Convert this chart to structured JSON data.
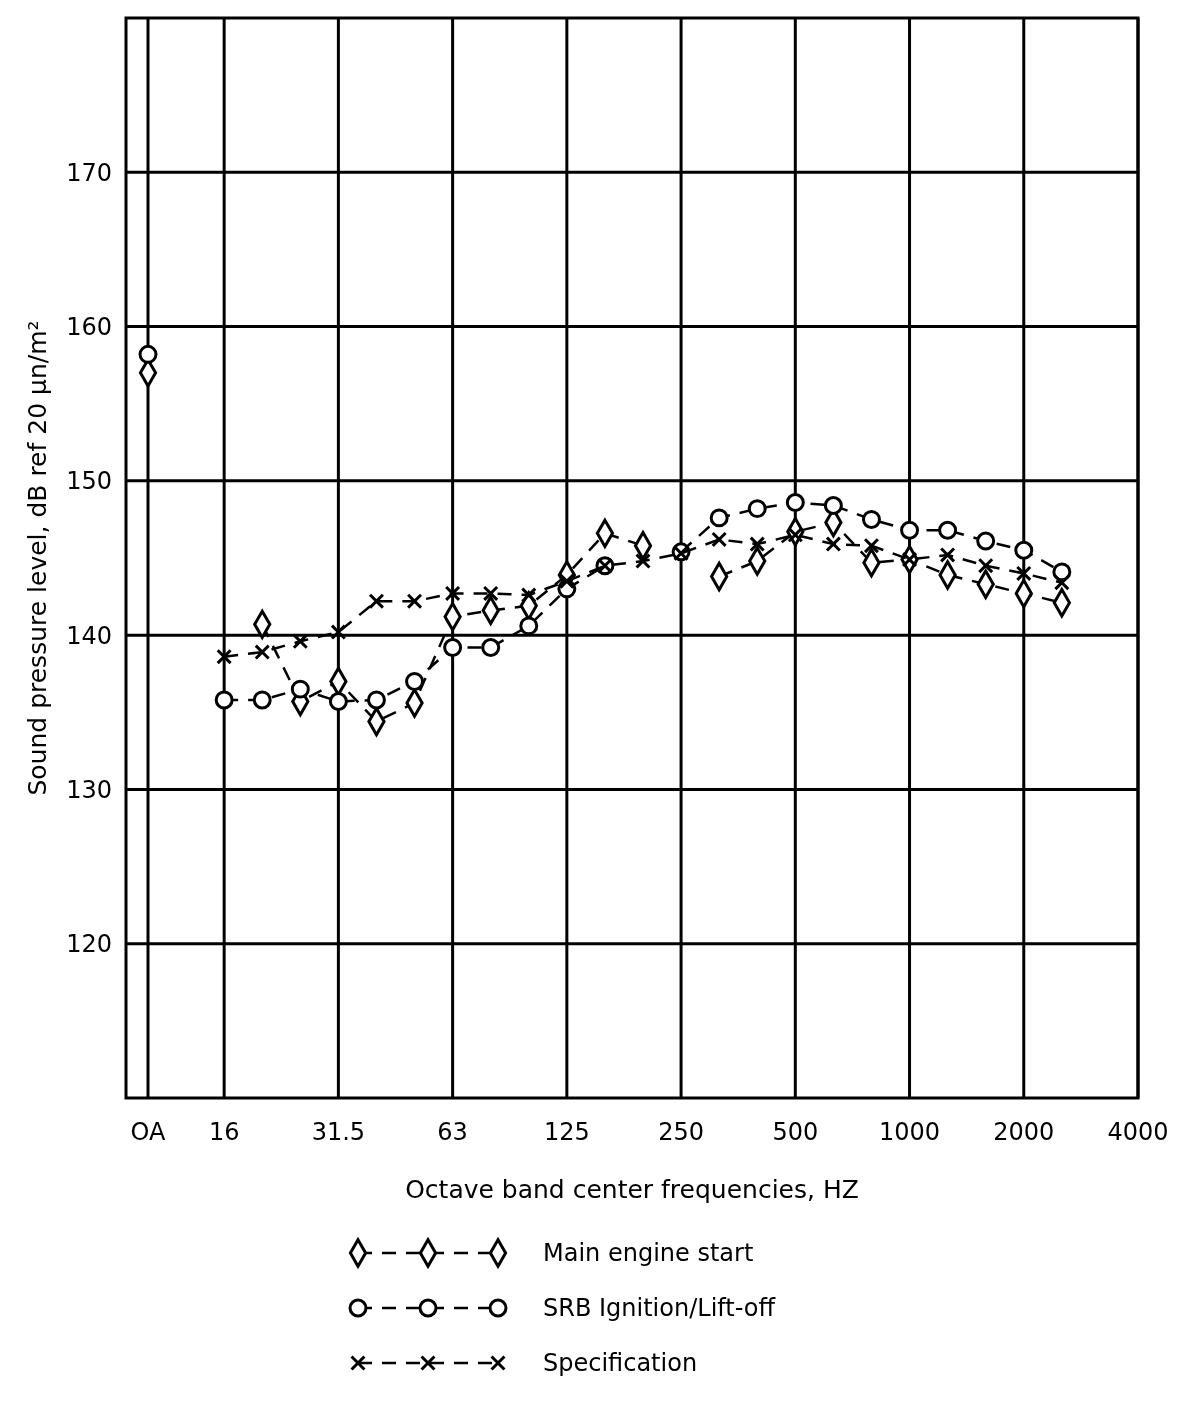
{
  "chart_data": {
    "type": "line",
    "xlabel": "Octave band center frequencies, HZ",
    "ylabel": "Sound pressure level, dB ref 20 μn/m²",
    "categories": [
      "OA",
      null,
      "16",
      null,
      null,
      "31.5",
      null,
      null,
      "63",
      null,
      null,
      "125",
      null,
      null,
      "250",
      null,
      null,
      "500",
      null,
      null,
      "1000",
      null,
      null,
      "2000",
      null,
      null,
      "4000"
    ],
    "series": [
      {
        "name": "Main engine start",
        "color": "#000000",
        "marker": "diamond",
        "values": [
          157.0,
          null,
          null,
          140.7,
          135.7,
          137.0,
          134.4,
          135.6,
          141.2,
          141.6,
          141.9,
          143.9,
          146.6,
          145.8,
          null,
          143.8,
          144.8,
          146.7,
          147.3,
          144.7,
          144.9,
          143.9,
          143.3,
          142.7,
          142.1,
          null,
          null
        ]
      },
      {
        "name": "SRB Ignition/Lift-off",
        "color": "#000000",
        "marker": "circle",
        "values": [
          158.2,
          null,
          135.8,
          135.8,
          136.5,
          135.7,
          135.8,
          137.0,
          139.2,
          139.2,
          140.6,
          143.0,
          144.5,
          null,
          145.4,
          147.6,
          148.2,
          148.6,
          148.4,
          147.5,
          146.8,
          146.8,
          146.1,
          145.5,
          144.1,
          null,
          null
        ]
      },
      {
        "name": "Specification",
        "color": "#000000",
        "marker": "cross",
        "values": [
          null,
          null,
          138.6,
          138.9,
          139.6,
          140.2,
          142.2,
          142.2,
          142.7,
          142.7,
          142.6,
          143.5,
          144.5,
          144.8,
          145.3,
          146.2,
          145.9,
          146.5,
          145.9,
          145.8,
          144.9,
          145.2,
          144.5,
          144.0,
          143.4,
          null,
          null
        ]
      }
    ],
    "ylim": [
      110,
      180
    ],
    "yticks": [
      120,
      130,
      140,
      150,
      160,
      170
    ],
    "grid": true,
    "legend": "bottom",
    "line_style": "dashed"
  }
}
